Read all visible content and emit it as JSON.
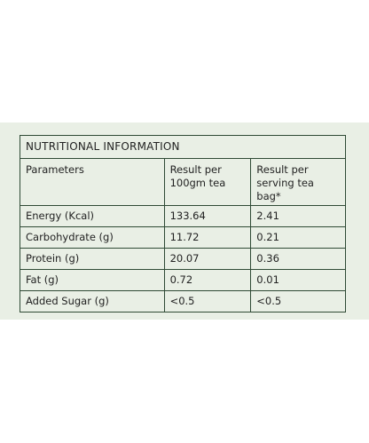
{
  "table": {
    "title": "NUTRITIONAL INFORMATION",
    "header": [
      "Parameters",
      "Result per\n100gm tea",
      "Result per\nserving tea bag*"
    ],
    "rows": [
      [
        "Energy (Kcal)",
        "133.64",
        "2.41"
      ],
      [
        "Carbohydrate (g)",
        "11.72",
        "0.21"
      ],
      [
        "Protein (g)",
        "20.07",
        "0.36"
      ],
      [
        "Fat (g)",
        "0.72",
        "0.01"
      ],
      [
        "Added Sugar (g)",
        "<0.5",
        "<0.5"
      ]
    ]
  }
}
